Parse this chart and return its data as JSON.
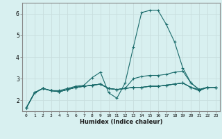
{
  "xlabel": "Humidex (Indice chaleur)",
  "ylabel": "",
  "background_color": "#d8f0f0",
  "grid_color": "#c8dede",
  "line_color": "#1a6b6b",
  "xlim": [
    -0.5,
    23.5
  ],
  "ylim": [
    1.5,
    6.5
  ],
  "xticks": [
    0,
    1,
    2,
    3,
    4,
    5,
    6,
    7,
    8,
    9,
    10,
    11,
    12,
    13,
    14,
    15,
    16,
    17,
    18,
    19,
    20,
    21,
    22,
    23
  ],
  "yticks": [
    2,
    3,
    4,
    5,
    6
  ],
  "series": [
    [
      1.65,
      2.35,
      2.55,
      2.45,
      2.45,
      2.55,
      2.65,
      2.7,
      3.05,
      3.3,
      2.35,
      2.1,
      2.8,
      4.45,
      6.05,
      6.15,
      6.15,
      5.5,
      4.7,
      3.5,
      2.8,
      2.5,
      2.6,
      2.6
    ],
    [
      1.65,
      2.35,
      2.55,
      2.45,
      2.4,
      2.5,
      2.6,
      2.65,
      2.7,
      2.75,
      2.55,
      2.5,
      2.55,
      3.0,
      3.1,
      3.15,
      3.15,
      3.2,
      3.3,
      3.35,
      2.8,
      2.5,
      2.6,
      2.6
    ],
    [
      1.65,
      2.35,
      2.55,
      2.45,
      2.4,
      2.5,
      2.6,
      2.65,
      2.7,
      2.75,
      2.55,
      2.5,
      2.55,
      2.6,
      2.6,
      2.65,
      2.65,
      2.7,
      2.75,
      2.8,
      2.6,
      2.5,
      2.6,
      2.6
    ],
    [
      1.65,
      2.35,
      2.55,
      2.45,
      2.4,
      2.5,
      2.6,
      2.65,
      2.7,
      2.75,
      2.55,
      2.5,
      2.55,
      2.6,
      2.6,
      2.65,
      2.65,
      2.7,
      2.75,
      2.8,
      2.6,
      2.45,
      2.6,
      2.6
    ],
    [
      1.65,
      2.35,
      2.55,
      2.45,
      2.4,
      2.5,
      2.6,
      2.65,
      2.7,
      2.75,
      2.55,
      2.5,
      2.55,
      2.6,
      2.6,
      2.65,
      2.65,
      2.7,
      2.75,
      2.8,
      2.6,
      2.45,
      2.6,
      2.6
    ]
  ]
}
